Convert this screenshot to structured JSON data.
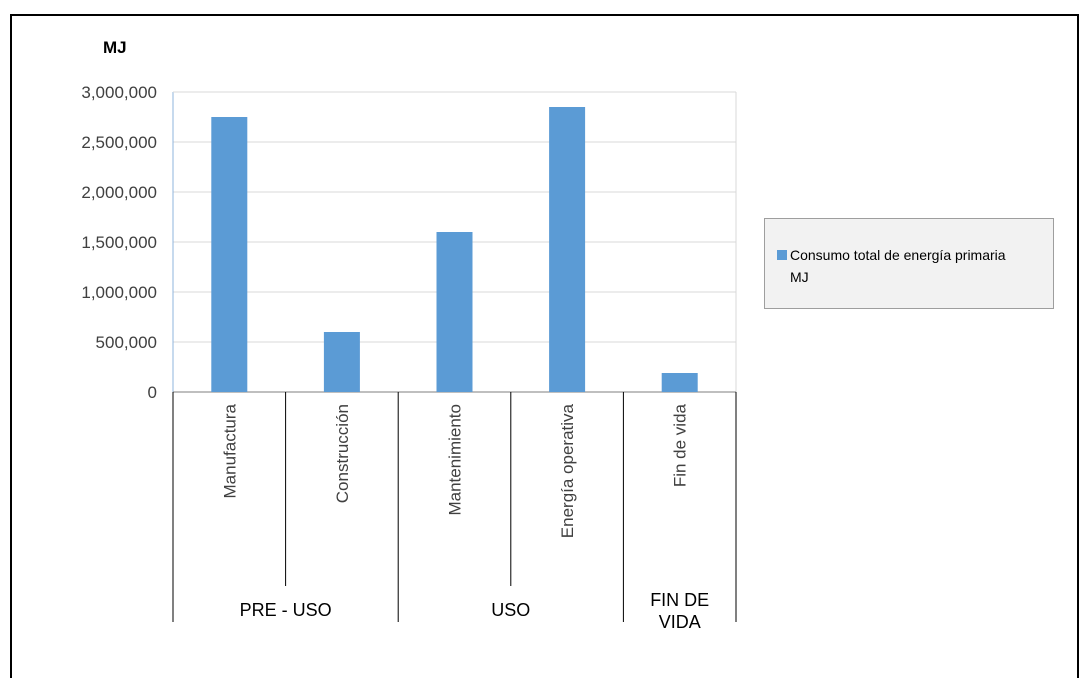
{
  "chart_data": {
    "type": "bar",
    "unit_label": "MJ",
    "categories": [
      "Manufactura",
      "Construcción",
      "Mantenimiento",
      "Energía operativa",
      "Fin de vida"
    ],
    "groups": [
      {
        "label": "PRE - USO",
        "categories": [
          "Manufactura",
          "Construcción"
        ]
      },
      {
        "label": "USO",
        "categories": [
          "Mantenimiento",
          "Energía operativa"
        ]
      },
      {
        "label_lines": [
          "FIN DE",
          "VIDA"
        ],
        "categories": [
          "Fin de vida"
        ]
      }
    ],
    "series": [
      {
        "name": "Consumo total de energía primaria MJ",
        "values": [
          2750000,
          600000,
          1600000,
          2850000,
          190000
        ]
      }
    ],
    "legend_lines": [
      "Consumo total de energía primaria",
      "MJ"
    ],
    "y_ticks": [
      "3,000,000",
      "2,500,000",
      "2,000,000",
      "1,500,000",
      "1,000,000",
      "500,000",
      "0"
    ],
    "ylim": [
      0,
      3000000
    ],
    "grid": true,
    "legend_position": "right",
    "colors": {
      "bar": "#5b9bd5",
      "grid": "#d9d9d9",
      "axis": "#7f7f7f"
    }
  }
}
